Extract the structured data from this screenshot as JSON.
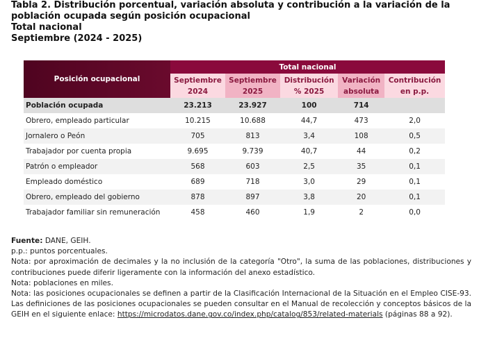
{
  "title": {
    "line1": "Tabla 2. Distribución porcentual, variación absoluta y contribución a la variación de la población ocupada según posición ocupacional",
    "line2": "Total nacional",
    "line3": "Septiembre (2024 - 2025)"
  },
  "table": {
    "row_header": "Posición ocupacional",
    "group_header": "Total nacional",
    "columns": [
      "Septiembre 2024",
      "Septiembre 2025",
      "Distribución % 2025",
      "Variación absoluta",
      "Contribución en p.p."
    ],
    "rows": [
      [
        "Población ocupada",
        "23.213",
        "23.927",
        "100",
        "714",
        ""
      ],
      [
        "Obrero, empleado particular",
        "10.215",
        "10.688",
        "44,7",
        "473",
        "2,0"
      ],
      [
        "Jornalero o Peón",
        "705",
        "813",
        "3,4",
        "108",
        "0,5"
      ],
      [
        "Trabajador por cuenta propia",
        "9.695",
        "9.739",
        "40,7",
        "44",
        "0,2"
      ],
      [
        "Patrón o empleador",
        "568",
        "603",
        "2,5",
        "35",
        "0,1"
      ],
      [
        "Empleado doméstico",
        "689",
        "718",
        "3,0",
        "29",
        "0,1"
      ],
      [
        "Obrero, empleado del gobierno",
        "878",
        "897",
        "3,8",
        "20",
        "0,1"
      ],
      [
        "Trabajador familiar sin remuneración",
        "458",
        "460",
        "1,9",
        "2",
        "0,0"
      ]
    ]
  },
  "notes": {
    "source_label": "Fuente:",
    "source": " DANE, GEIH.",
    "pp": "p.p.: puntos porcentuales.",
    "n1": "Nota: por aproximación de decimales y la no inclusión de la categoría \"Otro\", la suma de las poblaciones, distribuciones y contribuciones puede diferir ligeramente con la información del anexo estadístico.",
    "n2": "Nota: poblaciones en miles.",
    "n3a": "Nota: las posiciones ocupacionales se definen a partir de la Clasificación Internacional de la Situación en el Empleo CISE-93. Las definiciones de las posiciones ocupacionales se pueden consultar en el Manual de recolección y conceptos básicos de la GEIH en el siguiente enlace: ",
    "link": "https://microdatos.dane.gov.co/index.php/catalog/853/related-materials",
    "n3b": " (páginas 88 a 92)."
  },
  "colors": {
    "maroon": "#6a0a2d",
    "header": "#8a0a3c",
    "pink_light": "#fbd9e1",
    "pink_dark": "#f1b3c4"
  }
}
